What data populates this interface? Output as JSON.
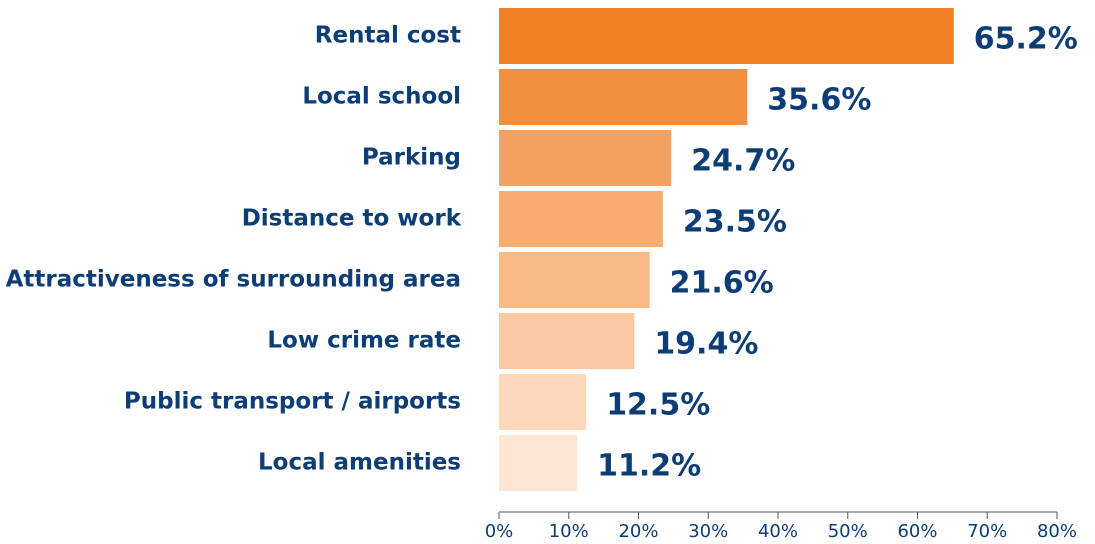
{
  "chart_data": {
    "type": "bar",
    "orientation": "horizontal",
    "categories": [
      "Rental cost",
      "Local school",
      "Parking",
      "Distance to work",
      "Attractiveness of surrounding area",
      "Low crime rate",
      "Public transport / airports",
      "Local amenities"
    ],
    "values": [
      65.2,
      35.6,
      24.7,
      23.5,
      21.6,
      19.4,
      12.5,
      11.2
    ],
    "value_labels": [
      "65.2%",
      "35.6%",
      "24.7%",
      "23.5%",
      "21.6%",
      "19.4%",
      "12.5%",
      "11.2%"
    ],
    "colors": [
      "#f08024",
      "#f39040",
      "#f5a160",
      "#f7ad70",
      "#f9bb86",
      "#fbc9a1",
      "#fdd8bd",
      "#fee6d4"
    ],
    "xlim": [
      0,
      80
    ],
    "xticks": [
      {
        "value": 0,
        "label": "0%"
      },
      {
        "value": 10,
        "label": "10%"
      },
      {
        "value": 20,
        "label": "20%"
      },
      {
        "value": 30,
        "label": "30%"
      },
      {
        "value": 40,
        "label": "40%"
      },
      {
        "value": 50,
        "label": "50%"
      },
      {
        "value": 60,
        "label": "60%"
      },
      {
        "value": 70,
        "label": "70%"
      },
      {
        "value": 80,
        "label": "80%"
      }
    ],
    "grid": false
  }
}
